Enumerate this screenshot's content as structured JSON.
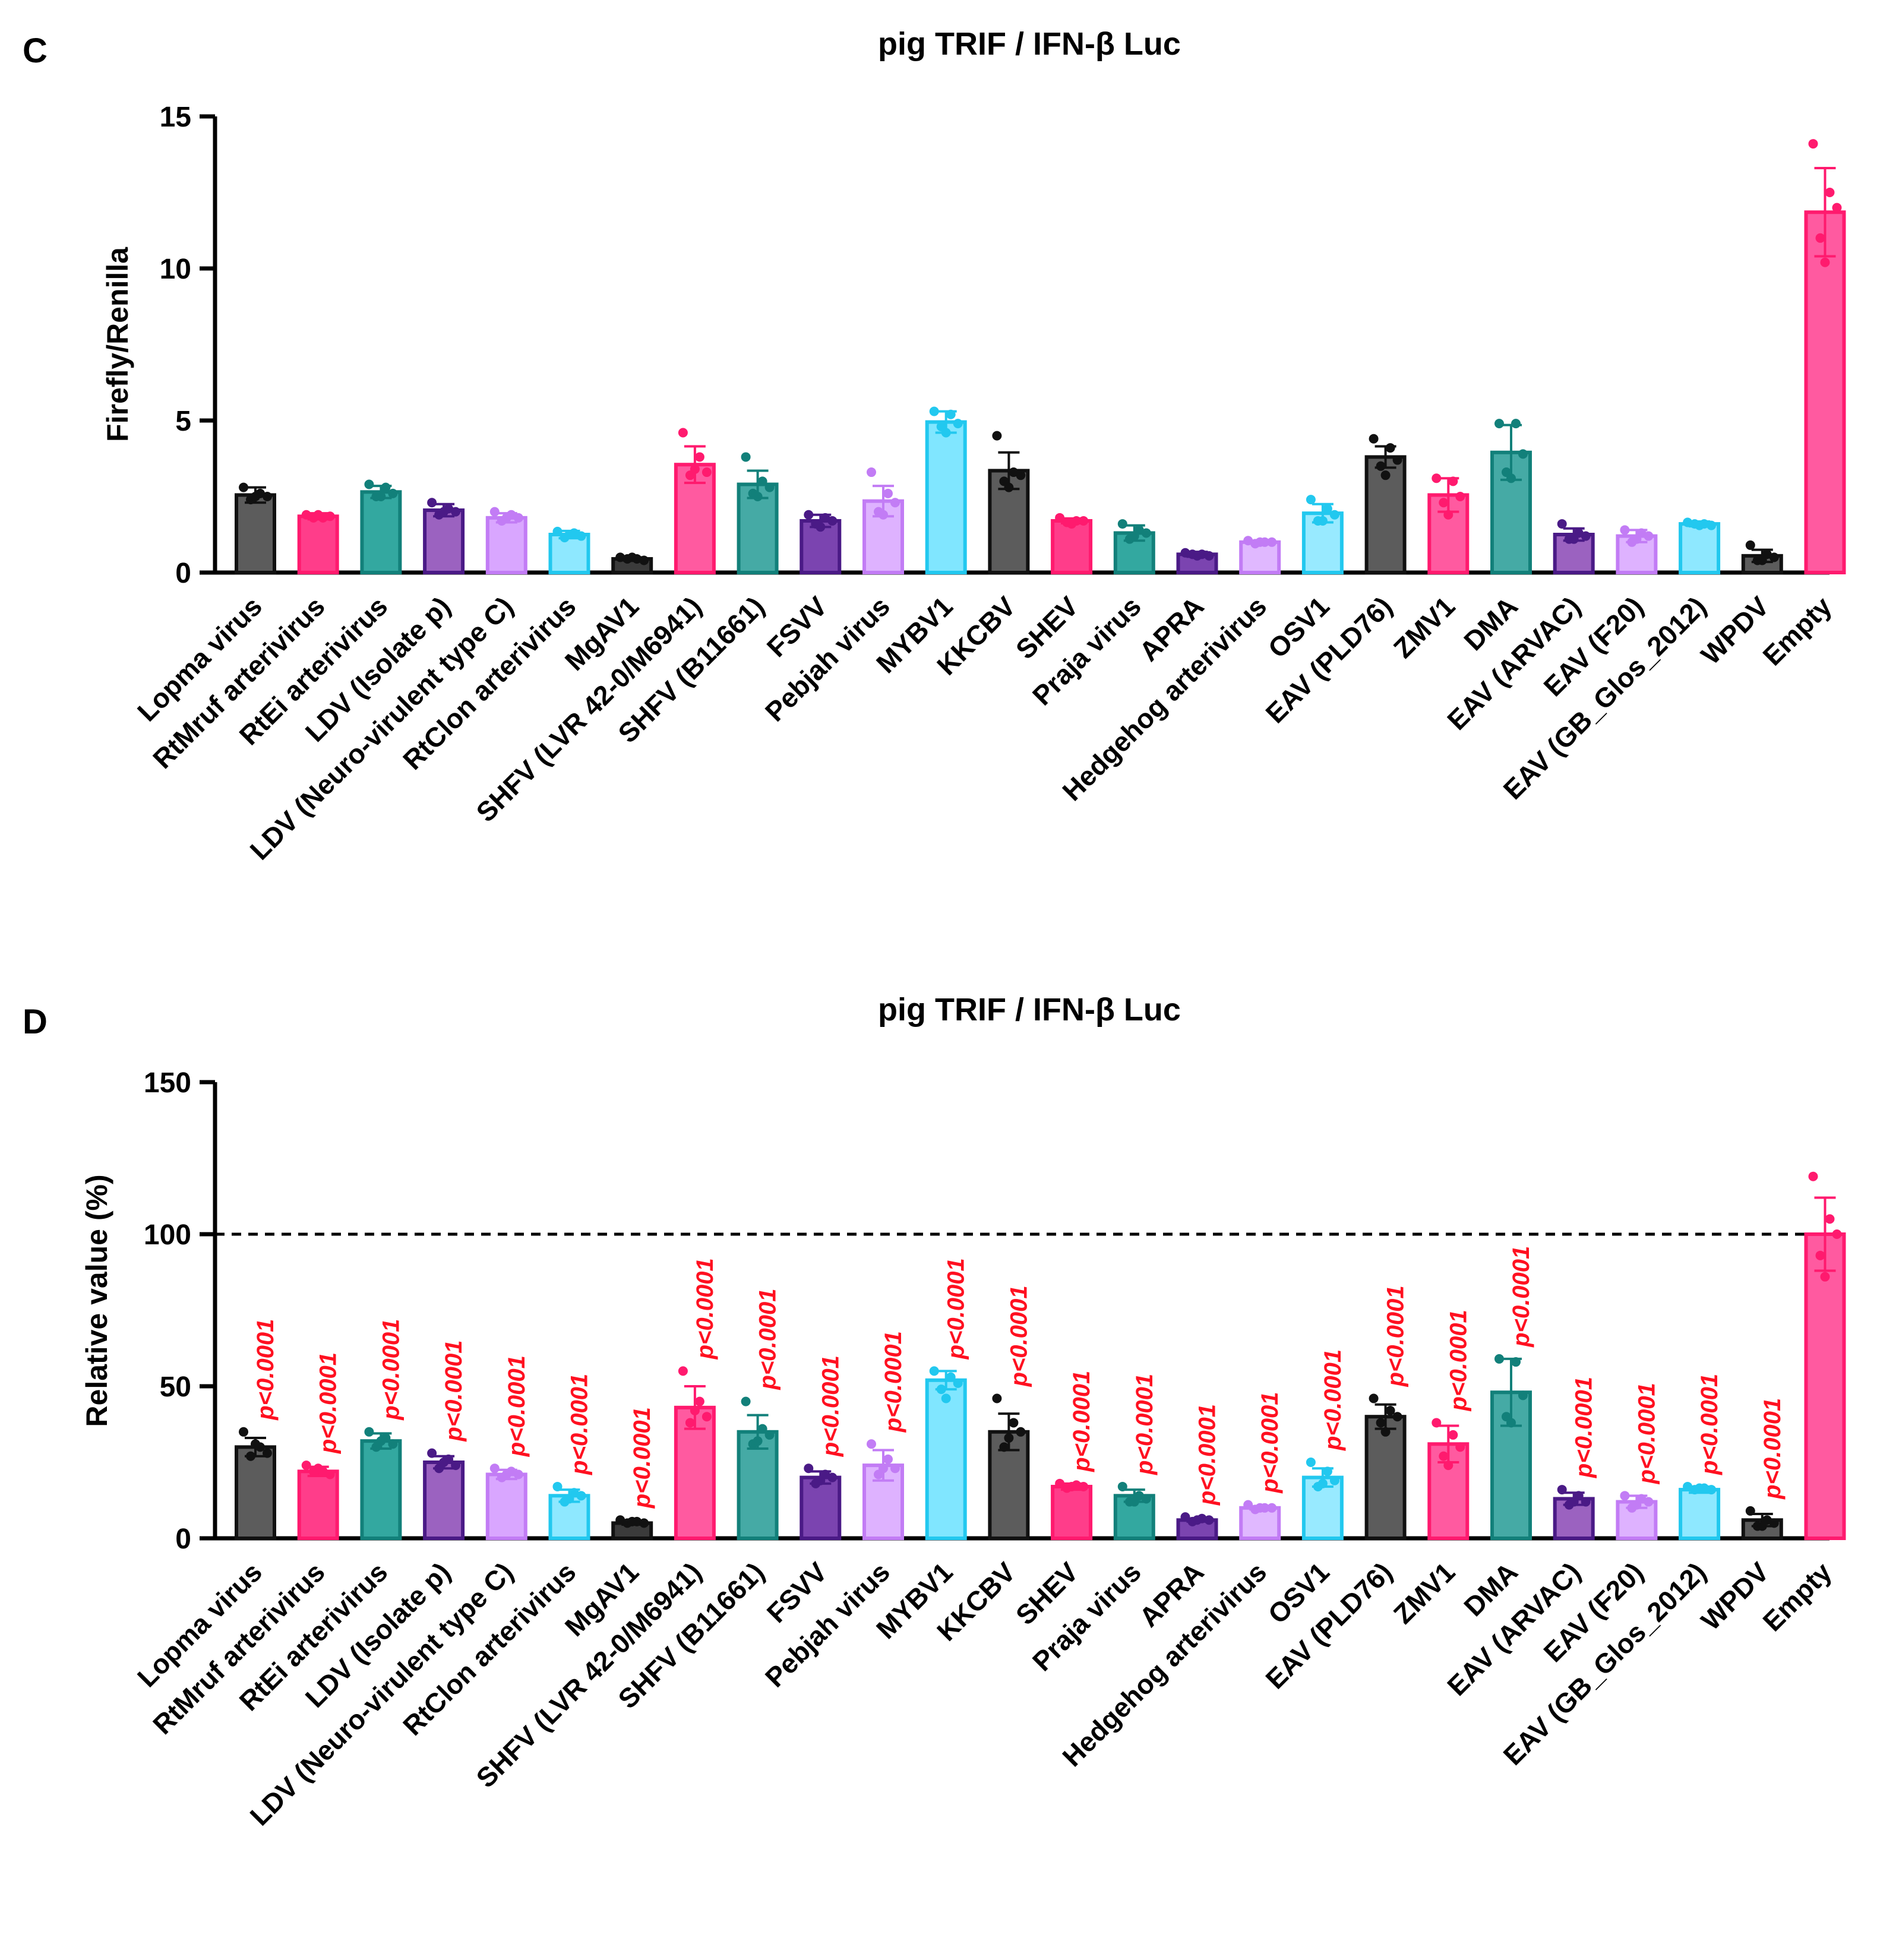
{
  "chart_data": [
    {
      "panel": "C",
      "type": "bar",
      "title": "pig TRIF / IFN-β Luc",
      "xlabel": "",
      "ylabel": "Firefly/Renilla",
      "ylim": [
        0,
        15
      ],
      "yticks": [
        0,
        5,
        10,
        15
      ],
      "yticklabels": [
        "0",
        "5",
        "10",
        "15"
      ],
      "categories": [
        "Lopma virus",
        "RtMruf arterivirus",
        "RtEi arterivirus",
        "LDV (Isolate p)",
        "LDV (Neuro-virulent type C)",
        "RtClon arterivirus",
        "MgAV1",
        "SHFV (LVR 42-0/M6941)",
        "SHFV (B11661)",
        "FSVV",
        "Pebjah virus",
        "MYBV1",
        "KKCBV",
        "SHEV",
        "Praja virus",
        "APRA",
        "Hedgehog arterivirus",
        "OSV1",
        "EAV (PLD76)",
        "ZMV1",
        "DMA",
        "EAV (ARVAC)",
        "EAV (F20)",
        "EAV (GB_Glos_2012)",
        "WPDV",
        "Empty"
      ],
      "values": [
        2.55,
        1.85,
        2.65,
        2.05,
        1.8,
        1.25,
        0.45,
        3.55,
        2.9,
        1.7,
        2.35,
        4.95,
        3.35,
        1.7,
        1.3,
        0.6,
        1.0,
        1.95,
        3.8,
        2.55,
        3.95,
        1.25,
        1.2,
        1.6,
        0.55,
        11.85
      ],
      "errors": [
        0.25,
        0.1,
        0.2,
        0.2,
        0.15,
        0.12,
        0.05,
        0.6,
        0.45,
        0.2,
        0.5,
        0.35,
        0.6,
        0.08,
        0.25,
        0.08,
        0.05,
        0.3,
        0.35,
        0.55,
        0.9,
        0.2,
        0.2,
        0.08,
        0.2,
        1.45
      ],
      "points": [
        [
          2.8,
          2.6,
          2.5,
          2.4,
          2.5
        ],
        [
          1.9,
          1.8,
          1.85,
          1.8,
          1.9
        ],
        [
          2.9,
          2.8,
          2.6,
          2.5,
          2.5
        ],
        [
          2.3,
          2.1,
          2.0,
          1.9,
          2.0
        ],
        [
          2.0,
          1.9,
          1.8,
          1.7,
          1.8
        ],
        [
          1.35,
          1.3,
          1.2,
          1.15,
          1.25
        ],
        [
          0.5,
          0.45,
          0.4,
          0.45,
          0.5
        ],
        [
          4.6,
          3.8,
          3.3,
          3.2,
          3.4
        ],
        [
          3.8,
          3.0,
          2.8,
          2.6,
          2.5
        ],
        [
          1.9,
          1.8,
          1.7,
          1.6,
          1.5
        ],
        [
          3.3,
          2.6,
          2.3,
          2.0,
          1.9
        ],
        [
          5.3,
          5.2,
          4.9,
          4.8,
          4.6
        ],
        [
          4.5,
          3.3,
          3.2,
          3.0,
          2.8
        ],
        [
          1.8,
          1.7,
          1.7,
          1.65,
          1.6
        ],
        [
          1.6,
          1.4,
          1.3,
          1.1,
          1.2
        ],
        [
          0.65,
          0.6,
          0.55,
          0.6,
          0.55
        ],
        [
          1.05,
          1.0,
          1.0,
          0.95,
          1.0
        ],
        [
          2.4,
          2.1,
          1.9,
          1.7,
          1.7
        ],
        [
          4.4,
          4.1,
          3.7,
          3.5,
          3.2
        ],
        [
          3.1,
          3.0,
          2.5,
          2.3,
          1.9
        ],
        [
          4.9,
          4.9,
          3.9,
          3.3,
          3.1
        ],
        [
          1.6,
          1.3,
          1.2,
          1.1,
          1.1
        ],
        [
          1.4,
          1.3,
          1.2,
          1.0,
          1.1
        ],
        [
          1.65,
          1.6,
          1.55,
          1.6,
          1.55
        ],
        [
          0.9,
          0.6,
          0.5,
          0.4,
          0.4
        ],
        [
          14.1,
          12.5,
          12.0,
          11.0,
          10.2
        ]
      ],
      "colors": [
        "#5c5c5c",
        "#ff3d8a",
        "#33a8a0",
        "#9b62c0",
        "#d9a6ff",
        "#8ee8ff",
        "#3b3b3b",
        "#ff5aa0",
        "#45aaa5",
        "#7b44b0",
        "#deb2ff",
        "#80e6ff",
        "#5c5c5c",
        "#ff3d8a",
        "#33a8a0",
        "#7b44b0",
        "#e0b8ff",
        "#98eaff",
        "#5c5c5c",
        "#ff5aa0",
        "#45aaa5",
        "#9b62c0",
        "#deb2ff",
        "#8ee8ff",
        "#5c5c5c",
        "#ff5aa0"
      ],
      "edge_colors": [
        "#111111",
        "#ff1a6e",
        "#12807a",
        "#4a1a86",
        "#c27cf5",
        "#22c8ef",
        "#111111",
        "#ff1a6e",
        "#12807a",
        "#4a1a86",
        "#c27cf5",
        "#22c8ef",
        "#111111",
        "#ff1a6e",
        "#12807a",
        "#4a1a86",
        "#c27cf5",
        "#22c8ef",
        "#111111",
        "#ff1a6e",
        "#12807a",
        "#4a1a86",
        "#c27cf5",
        "#22c8ef",
        "#111111",
        "#ff1a6e"
      ]
    },
    {
      "panel": "D",
      "type": "bar",
      "title": "pig TRIF / IFN-β Luc",
      "xlabel": "",
      "ylabel": "Relative value (%)",
      "ylim": [
        0,
        150
      ],
      "yticks": [
        0,
        50,
        100,
        150
      ],
      "yticklabels": [
        "0",
        "50",
        "100",
        "150"
      ],
      "reference_line": 100,
      "categories": [
        "Lopma virus",
        "RtMruf arterivirus",
        "RtEi arterivirus",
        "LDV (Isolate p)",
        "LDV (Neuro-virulent type C)",
        "RtClon arterivirus",
        "MgAV1",
        "SHFV (LVR 42-0/M6941)",
        "SHFV (B11661)",
        "FSVV",
        "Pebjah virus",
        "MYBV1",
        "KKCBV",
        "SHEV",
        "Praja virus",
        "APRA",
        "Hedgehog arterivirus",
        "OSV1",
        "EAV (PLD76)",
        "ZMV1",
        "DMA",
        "EAV (ARVAC)",
        "EAV (F20)",
        "EAV (GB_Glos_2012)",
        "WPDV",
        "Empty"
      ],
      "values": [
        30,
        22,
        32,
        25,
        21,
        14,
        5,
        43,
        35,
        20,
        24,
        52,
        35,
        17,
        14,
        6,
        10,
        20,
        40,
        31,
        48,
        13,
        12,
        16,
        6,
        100
      ],
      "errors": [
        3,
        1.5,
        2.5,
        2,
        1.5,
        2,
        0.5,
        7,
        5.5,
        2,
        5,
        3,
        6,
        1,
        2,
        0.5,
        0.5,
        3,
        4,
        6,
        11,
        2,
        2,
        1,
        2,
        12
      ],
      "points": [
        [
          35,
          30,
          28,
          27,
          31
        ],
        [
          24,
          22,
          21,
          22,
          23
        ],
        [
          35,
          33,
          31,
          30,
          32
        ],
        [
          28,
          26,
          24,
          23,
          25
        ],
        [
          23,
          22,
          21,
          20,
          21
        ],
        [
          17,
          15,
          14,
          12,
          13
        ],
        [
          6,
          5.5,
          5,
          5,
          5.5
        ],
        [
          55,
          45,
          40,
          38,
          42
        ],
        [
          45,
          36,
          34,
          31,
          32
        ],
        [
          23,
          21,
          20,
          18,
          19
        ],
        [
          31,
          26,
          23,
          21,
          23
        ],
        [
          55,
          53,
          51,
          49,
          46
        ],
        [
          46,
          38,
          35,
          30,
          33
        ],
        [
          18,
          17.5,
          17,
          16.5,
          17
        ],
        [
          17,
          14,
          13,
          12,
          12
        ],
        [
          7,
          6.5,
          6,
          5.5,
          6
        ],
        [
          11,
          10,
          10,
          9.5,
          10
        ],
        [
          25,
          22,
          19,
          17,
          18
        ],
        [
          46,
          42,
          40,
          38,
          35
        ],
        [
          38,
          34,
          30,
          27,
          24
        ],
        [
          59,
          58,
          47,
          40,
          38
        ],
        [
          16,
          14,
          12,
          11,
          12
        ],
        [
          14,
          13,
          12,
          10,
          11
        ],
        [
          17,
          16.5,
          16,
          16,
          16.5
        ],
        [
          9,
          6,
          5,
          4,
          4
        ],
        [
          119,
          105,
          100,
          93,
          86
        ]
      ],
      "pvalue_labels": [
        "p<0.0001",
        "p<0.0001",
        "p<0.0001",
        "p<0.0001",
        "p<0.0001",
        "p<0.0001",
        "p<0.0001",
        "p<0.0001",
        "p<0.0001",
        "p<0.0001",
        "p<0.0001",
        "p<0.0001",
        "p<0.0001",
        "p<0.0001",
        "p<0.0001",
        "p<0.0001",
        "p<0.0001",
        "p<0.0001",
        "p<0.0001",
        "p<0.0001",
        "p<0.0001",
        "p<0.0001",
        "p<0.0001",
        "p<0.0001",
        "p<0.0001",
        ""
      ],
      "colors": [
        "#5c5c5c",
        "#ff3d8a",
        "#33a8a0",
        "#9b62c0",
        "#d9a6ff",
        "#8ee8ff",
        "#3b3b3b",
        "#ff5aa0",
        "#45aaa5",
        "#7b44b0",
        "#deb2ff",
        "#80e6ff",
        "#5c5c5c",
        "#ff3d8a",
        "#33a8a0",
        "#7b44b0",
        "#e0b8ff",
        "#98eaff",
        "#5c5c5c",
        "#ff5aa0",
        "#45aaa5",
        "#9b62c0",
        "#deb2ff",
        "#8ee8ff",
        "#5c5c5c",
        "#ff5aa0"
      ],
      "edge_colors": [
        "#111111",
        "#ff1a6e",
        "#12807a",
        "#4a1a86",
        "#c27cf5",
        "#22c8ef",
        "#111111",
        "#ff1a6e",
        "#12807a",
        "#4a1a86",
        "#c27cf5",
        "#22c8ef",
        "#111111",
        "#ff1a6e",
        "#12807a",
        "#4a1a86",
        "#c27cf5",
        "#22c8ef",
        "#111111",
        "#ff1a6e",
        "#12807a",
        "#4a1a86",
        "#c27cf5",
        "#22c8ef",
        "#111111",
        "#ff1a6e"
      ],
      "pvalue_color": "#ff1020"
    }
  ]
}
